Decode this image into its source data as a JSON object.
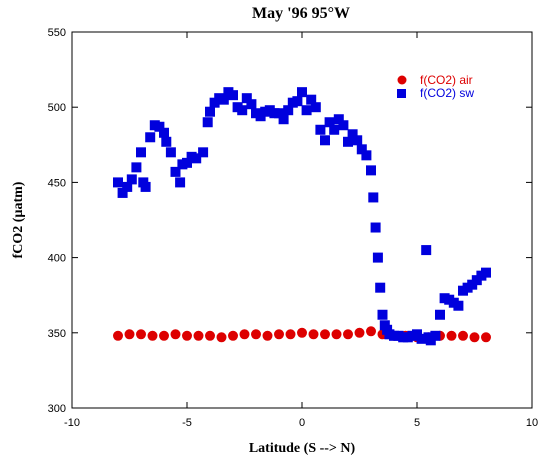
{
  "chart_data": {
    "type": "scatter",
    "title": "May '96 95°W",
    "xlabel": "Latitude (S --> N)",
    "ylabel": "fCO2 (µatm)",
    "xlim": [
      -10,
      10
    ],
    "ylim": [
      300,
      550
    ],
    "x_ticks": [
      -10,
      -5,
      0,
      5,
      10
    ],
    "y_ticks": [
      300,
      350,
      400,
      450,
      500,
      550
    ],
    "x_tick_labels": [
      "-10",
      "-5",
      "0",
      "5",
      "10"
    ],
    "y_tick_labels": [
      "300",
      "350",
      "400",
      "450",
      "500",
      "550"
    ],
    "grid": false,
    "legend_position": "top-right",
    "series": [
      {
        "name": "f(CO2) air",
        "marker": "circle",
        "color": "#dd0000",
        "x": [
          -8.0,
          -7.5,
          -7.0,
          -6.5,
          -6.0,
          -5.5,
          -5.0,
          -4.5,
          -4.0,
          -3.5,
          -3.0,
          -2.5,
          -2.0,
          -1.5,
          -1.0,
          -0.5,
          0.0,
          0.5,
          1.0,
          1.5,
          2.0,
          2.5,
          3.0,
          3.5,
          4.0,
          4.5,
          5.0,
          5.5,
          6.0,
          6.5,
          7.0,
          7.5,
          8.0
        ],
        "y": [
          348,
          349,
          349,
          348,
          348,
          349,
          348,
          348,
          348,
          347,
          348,
          349,
          349,
          348,
          349,
          349,
          350,
          349,
          349,
          349,
          349,
          350,
          351,
          349,
          348,
          348,
          347,
          347,
          348,
          348,
          348,
          347,
          347
        ]
      },
      {
        "name": "f(CO2) sw",
        "marker": "square",
        "color": "#0000dd",
        "x": [
          -8.0,
          -7.8,
          -7.6,
          -7.4,
          -7.2,
          -7.0,
          -6.9,
          -6.8,
          -6.6,
          -6.4,
          -6.2,
          -6.0,
          -5.9,
          -5.7,
          -5.5,
          -5.3,
          -5.2,
          -5.0,
          -4.8,
          -4.6,
          -4.3,
          -4.1,
          -4.0,
          -3.8,
          -3.6,
          -3.4,
          -3.2,
          -3.0,
          -2.8,
          -2.6,
          -2.4,
          -2.2,
          -2.0,
          -1.8,
          -1.6,
          -1.4,
          -1.2,
          -1.0,
          -0.8,
          -0.6,
          -0.4,
          -0.2,
          0.0,
          0.2,
          0.4,
          0.6,
          0.8,
          1.0,
          1.2,
          1.4,
          1.6,
          1.8,
          2.0,
          2.2,
          2.4,
          2.6,
          2.8,
          3.0,
          3.1,
          3.2,
          3.3,
          3.4,
          3.5,
          3.6,
          3.7,
          3.8,
          4.0,
          4.2,
          4.4,
          4.6,
          4.8,
          5.0,
          5.2,
          5.4,
          5.5,
          5.6,
          5.8,
          6.0,
          6.2,
          6.4,
          6.6,
          6.8,
          7.0,
          7.2,
          7.4,
          7.6,
          7.8,
          8.0
        ],
        "y": [
          450,
          443,
          447,
          452,
          460,
          470,
          450,
          447,
          480,
          488,
          487,
          483,
          477,
          470,
          457,
          450,
          462,
          463,
          467,
          466,
          470,
          490,
          497,
          503,
          506,
          505,
          510,
          508,
          500,
          498,
          506,
          502,
          496,
          494,
          497,
          498,
          496,
          496,
          492,
          498,
          503,
          504,
          510,
          498,
          505,
          500,
          485,
          478,
          490,
          485,
          492,
          488,
          477,
          482,
          478,
          472,
          468,
          458,
          440,
          420,
          400,
          380,
          362,
          355,
          352,
          349,
          348,
          348,
          347,
          347,
          348,
          349,
          346,
          405,
          347,
          345,
          348,
          362,
          373,
          372,
          370,
          368,
          378,
          380,
          382,
          385,
          388,
          390
        ]
      }
    ]
  }
}
